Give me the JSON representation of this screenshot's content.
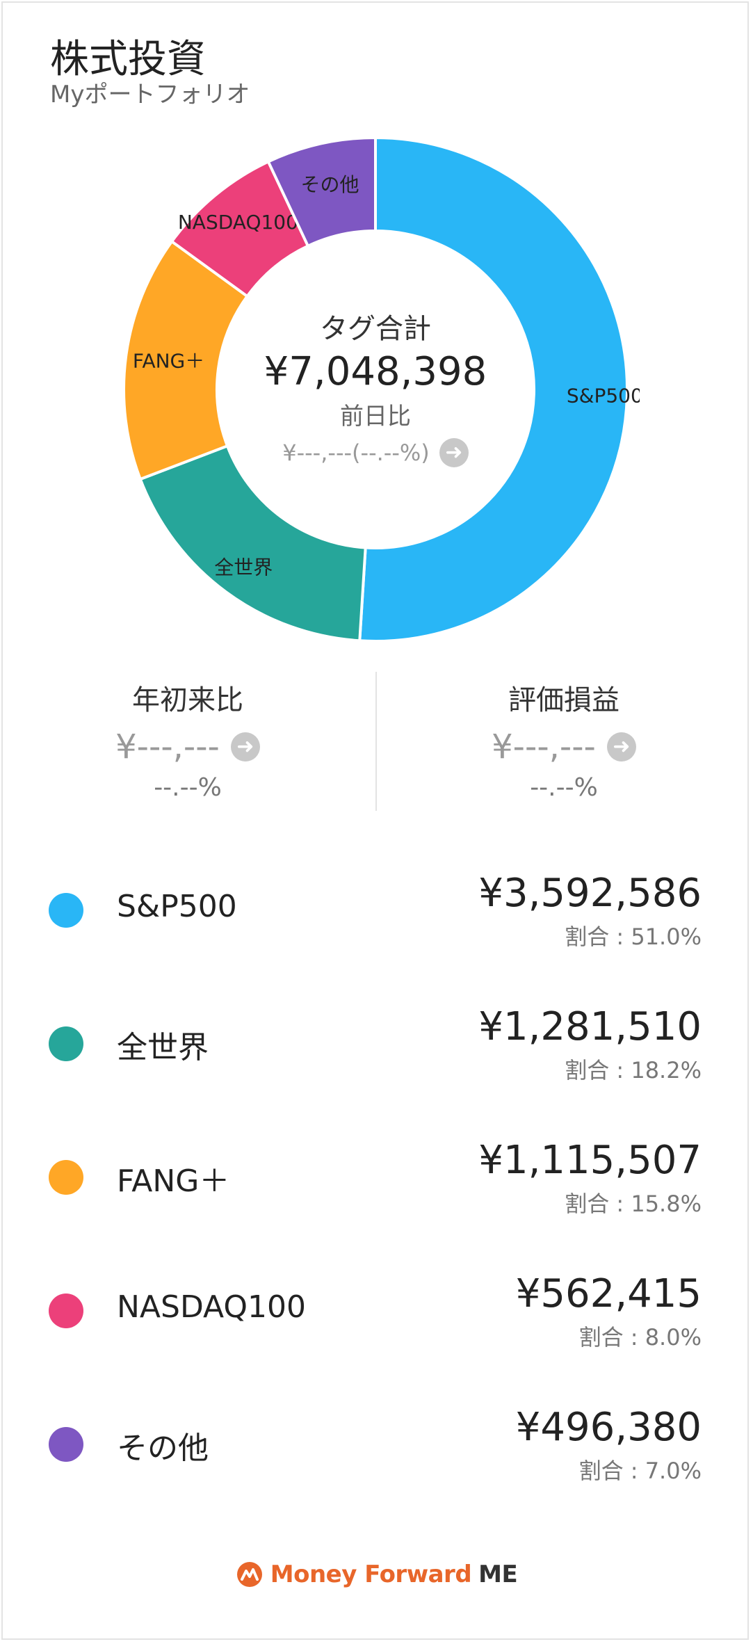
{
  "header": {
    "title": "株式投資",
    "subtitle": "Myポートフォリオ"
  },
  "summary": {
    "center_label": "タグ合計",
    "total": "¥7,048,398",
    "day_change_label": "前日比",
    "day_change_value": "¥---,---(--.--%)"
  },
  "stats": {
    "ytd": {
      "title": "年初来比",
      "value": "¥---,---",
      "pct": "--.--%"
    },
    "pl": {
      "title": "評価損益",
      "value": "¥---,---",
      "pct": "--.--%"
    }
  },
  "colors": {
    "sp500": "#29b6f6",
    "world": "#26a69a",
    "fang": "#ffa726",
    "nasdaq": "#ec407a",
    "other": "#7e57c2"
  },
  "chart_data": {
    "type": "pie",
    "categories": [
      "S&P500",
      "全世界",
      "FANG＋",
      "NASDAQ100",
      "その他"
    ],
    "values": [
      51.0,
      18.2,
      15.8,
      8.0,
      7.0
    ],
    "colors": [
      "#29b6f6",
      "#26a69a",
      "#ffa726",
      "#ec407a",
      "#7e57c2"
    ]
  },
  "legend": {
    "items": [
      {
        "name": "S&P500",
        "value": "¥3,592,586",
        "share": "割合 : 51.0%",
        "color": "#29b6f6"
      },
      {
        "name": "全世界",
        "value": "¥1,281,510",
        "share": "割合 : 18.2%",
        "color": "#26a69a"
      },
      {
        "name": "FANG＋",
        "value": "¥1,115,507",
        "share": "割合 : 15.8%",
        "color": "#ffa726"
      },
      {
        "name": "NASDAQ100",
        "value": "¥562,415",
        "share": "割合 : 8.0%",
        "color": "#ec407a"
      },
      {
        "name": "その他",
        "value": "¥496,380",
        "share": "割合 : 7.0%",
        "color": "#7e57c2"
      }
    ]
  },
  "brand": {
    "name": "Money Forward",
    "suffix": "ME",
    "icon": "money-forward-logo-icon"
  }
}
